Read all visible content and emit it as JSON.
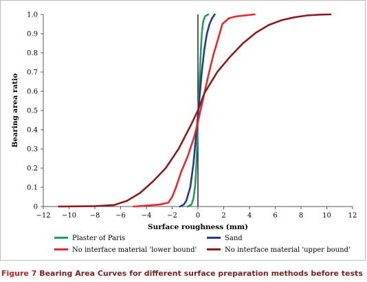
{
  "caption": {
    "label": "Figure 7",
    "text": "Bearing Area Curves for different surface preparation methods before tests"
  },
  "chart_data": {
    "type": "line",
    "xlabel": "Surface roughness (mm)",
    "ylabel": "Bearing area ratio",
    "xlim": [
      -12,
      12
    ],
    "ylim": [
      0,
      1
    ],
    "xticks": [
      -12,
      -10,
      -8,
      -6,
      -4,
      -2,
      0,
      2,
      4,
      6,
      8,
      10,
      12
    ],
    "yticks": [
      0,
      0.1,
      0.2,
      0.3,
      0.4,
      0.5,
      0.6,
      0.7,
      0.8,
      0.9,
      1.0
    ],
    "ytick_labels": [
      "0",
      "0.1",
      "0.2",
      "0.3",
      "0.4",
      "0.5",
      "0.6",
      "0.7",
      "0.8",
      "0.9",
      "1.0"
    ],
    "grid": false,
    "legend_position": "bottom",
    "series": [
      {
        "name": "Plaster of Paris",
        "color": "#1f9e5a",
        "x": [
          -0.8,
          -0.5,
          -0.35,
          -0.2,
          -0.1,
          0.0,
          0.1,
          0.2,
          0.3,
          0.4,
          0.55,
          0.8
        ],
        "y": [
          0.0,
          0.01,
          0.04,
          0.12,
          0.25,
          0.45,
          0.62,
          0.78,
          0.9,
          0.96,
          0.99,
          1.0
        ]
      },
      {
        "name": "Sand",
        "color": "#1f3a8f",
        "x": [
          -1.4,
          -1.1,
          -0.9,
          -0.6,
          -0.35,
          -0.1,
          0.1,
          0.3,
          0.5,
          0.7,
          0.9,
          1.1,
          1.3
        ],
        "y": [
          0.0,
          0.01,
          0.03,
          0.1,
          0.22,
          0.4,
          0.55,
          0.7,
          0.82,
          0.9,
          0.95,
          0.98,
          1.0
        ]
      },
      {
        "name": "No interface material 'lower bound'",
        "color": "#e8272b",
        "x": [
          -5.0,
          -3.0,
          -2.3,
          -2.0,
          -1.7,
          -1.3,
          -0.8,
          -0.3,
          0.0,
          0.4,
          0.8,
          1.2,
          1.6,
          1.9,
          2.4,
          3.0,
          4.4
        ],
        "y": [
          0.0,
          0.01,
          0.02,
          0.05,
          0.1,
          0.18,
          0.26,
          0.36,
          0.44,
          0.56,
          0.68,
          0.79,
          0.88,
          0.95,
          0.98,
          0.99,
          1.0
        ]
      },
      {
        "name": "No interface material 'upper bound'",
        "color": "#8b1a1a",
        "x": [
          -10.8,
          -8.0,
          -6.5,
          -5.5,
          -4.5,
          -3.5,
          -2.5,
          -1.5,
          -0.5,
          0.0,
          0.5,
          1.5,
          2.5,
          3.5,
          4.5,
          5.5,
          6.5,
          7.5,
          8.5,
          9.5,
          10.3
        ],
        "y": [
          0.0,
          0.002,
          0.008,
          0.03,
          0.07,
          0.13,
          0.2,
          0.3,
          0.43,
          0.5,
          0.59,
          0.7,
          0.78,
          0.85,
          0.905,
          0.945,
          0.97,
          0.985,
          0.995,
          0.999,
          1.0
        ]
      }
    ]
  }
}
